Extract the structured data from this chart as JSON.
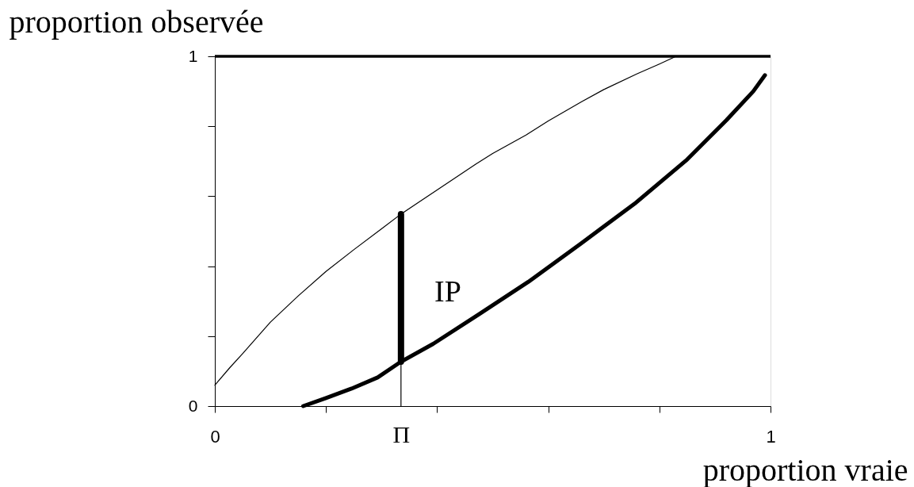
{
  "chart_data": {
    "type": "line",
    "xlabel": "proportion vraie",
    "ylabel": "proportion observée",
    "xlim": [
      0,
      1
    ],
    "ylim": [
      0,
      1
    ],
    "xticks": [
      0,
      {
        "value": 0.2,
        "label": null
      },
      {
        "value": 0.4,
        "label": null
      },
      {
        "value": 0.6,
        "label": null
      },
      {
        "value": 0.8,
        "label": null
      },
      1,
      {
        "value": 0.335,
        "label": "Π"
      }
    ],
    "yticks": [
      0,
      {
        "value": 0.2,
        "label": null
      },
      {
        "value": 0.4,
        "label": null
      },
      {
        "value": 0.6,
        "label": null
      },
      {
        "value": 0.8,
        "label": null
      },
      1
    ],
    "series": [
      {
        "color": "#000000",
        "x": [
          0,
          0.027,
          0.05,
          0.1,
          0.15,
          0.2,
          0.25,
          0.3,
          0.335,
          0.4,
          0.47,
          0.5,
          0.56,
          0.6,
          0.66,
          0.7,
          0.76,
          0.8,
          0.83
        ],
        "values": [
          0.06,
          0.11,
          0.15,
          0.24,
          0.315,
          0.385,
          0.447,
          0.507,
          0.549,
          0.618,
          0.692,
          0.722,
          0.775,
          0.815,
          0.87,
          0.905,
          0.95,
          0.978,
          1
        ]
      },
      {
        "color": "#000000",
        "x": [
          0.159,
          0.2,
          0.246,
          0.293,
          0.335,
          0.393,
          0.475,
          0.564,
          0.659,
          0.755,
          0.85,
          0.921,
          0.969,
          0.99
        ],
        "values": [
          0,
          0.023,
          0.05,
          0.082,
          0.127,
          0.178,
          0.262,
          0.355,
          0.465,
          0.578,
          0.705,
          0.818,
          0.9,
          0.946
        ]
      },
      {
        "color": "#000000",
        "x": [
          0.335,
          0.335
        ],
        "values": [
          0.127,
          0.549
        ]
      },
      {
        "color": "#000000",
        "x": [
          0.335,
          0.335
        ],
        "values": [
          0,
          0.127
        ]
      }
    ],
    "ref_lines": [
      {
        "axis": "y",
        "value": 1,
        "color": "#000000"
      }
    ],
    "annotations": [
      "IP"
    ]
  }
}
